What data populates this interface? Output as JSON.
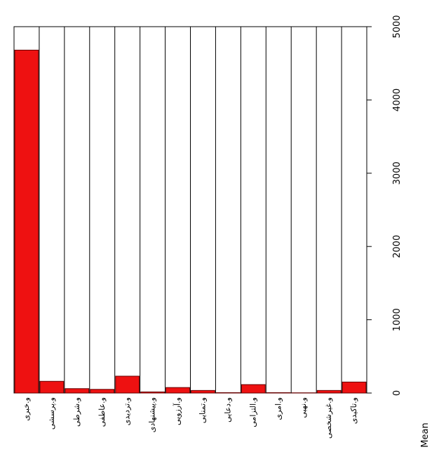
{
  "chart_data": {
    "type": "bar",
    "y_label": "Mean",
    "categories": [
      "و.خبری",
      "و.پرسشی",
      "و.شرطی",
      "و.عاطفی",
      "و.تردیدی",
      "و.پیشنهادی",
      "و.آرزویی",
      "و.تمنایی",
      "و.دعایی",
      "و.التزامی",
      "و.امری",
      "و.نهیی",
      "و.غیرشخصی",
      "و.تاکیدی"
    ],
    "values": [
      4680,
      160,
      60,
      50,
      230,
      15,
      75,
      35,
      5,
      115,
      5,
      3,
      35,
      150
    ],
    "color": "#ee1111",
    "ylim": [
      0,
      5000
    ],
    "yticks": [
      0,
      1000,
      2000,
      3000,
      4000,
      5000
    ]
  }
}
